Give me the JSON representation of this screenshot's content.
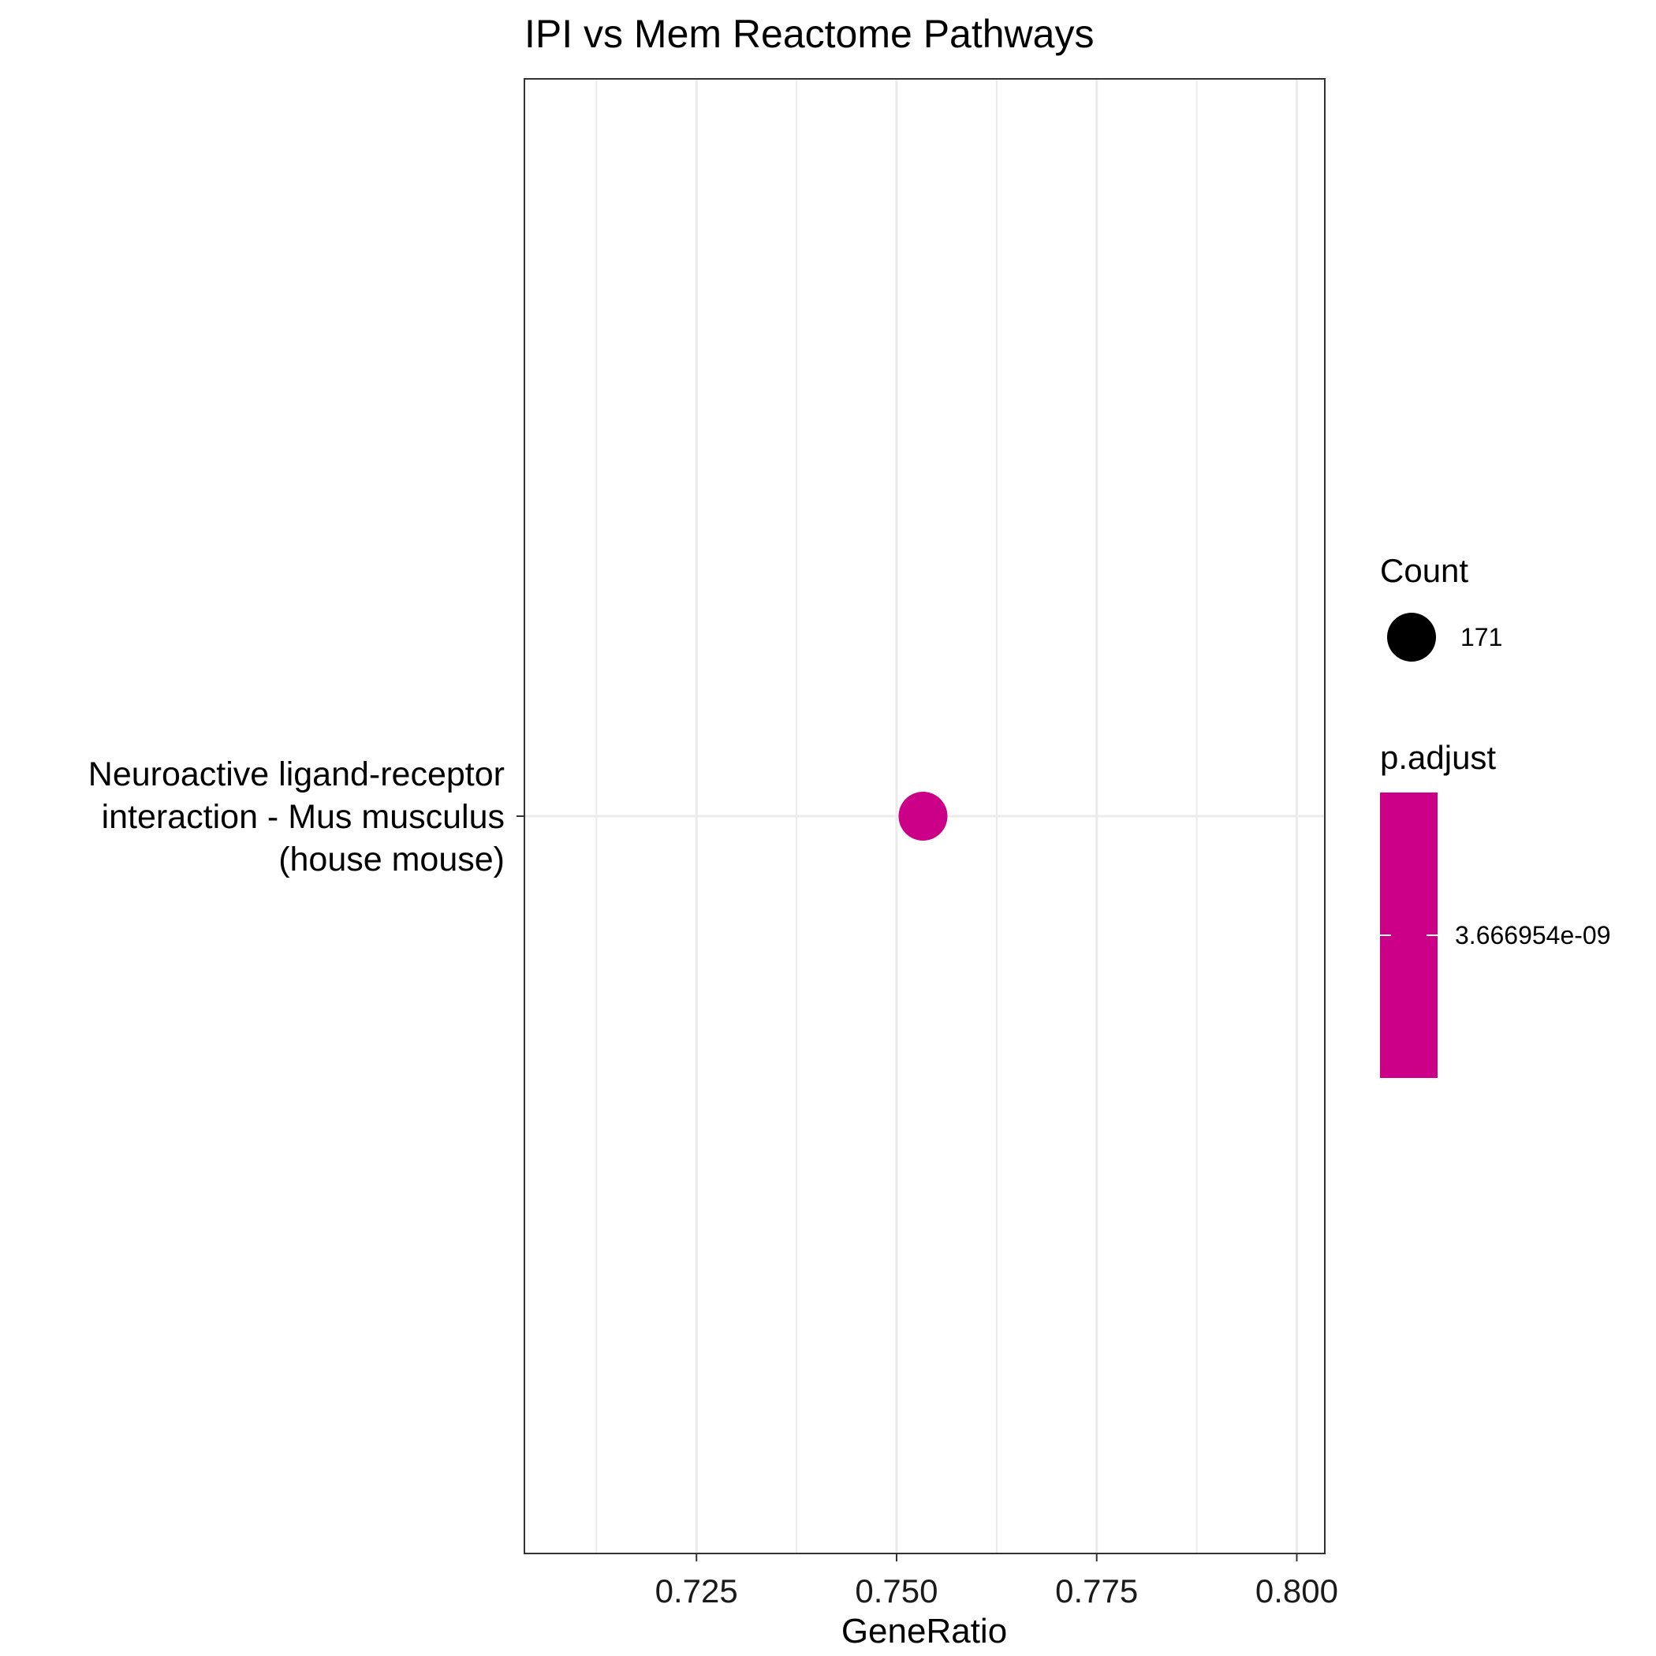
{
  "chart_data": {
    "type": "scatter",
    "title": "IPI vs Mem Reactome Pathways",
    "xlabel": "GeneRatio",
    "ylabel": "",
    "xlim": [
      0.7035,
      0.8035
    ],
    "x_ticks": [
      0.725,
      0.75,
      0.775,
      0.8
    ],
    "x_tick_labels": [
      "0.725",
      "0.750",
      "0.775",
      "0.800"
    ],
    "categories": [
      [
        "Neuroactive ligand-receptor",
        "interaction - Mus musculus",
        "(house mouse)"
      ]
    ],
    "points": [
      {
        "category_index": 0,
        "x": 0.7533,
        "count": 171,
        "p_adjust": 3.666954e-09
      }
    ],
    "grid": true,
    "legend_position": "right",
    "legends": {
      "size": {
        "title": "Count",
        "labels": [
          "171"
        ]
      },
      "color": {
        "title": "p.adjust",
        "labels": [
          "3.666954e-09"
        ],
        "color": "#CC0088"
      }
    },
    "colors": {
      "point": "#CC0088",
      "grid": "#EBEBEB",
      "panel_border": "#333333"
    }
  }
}
